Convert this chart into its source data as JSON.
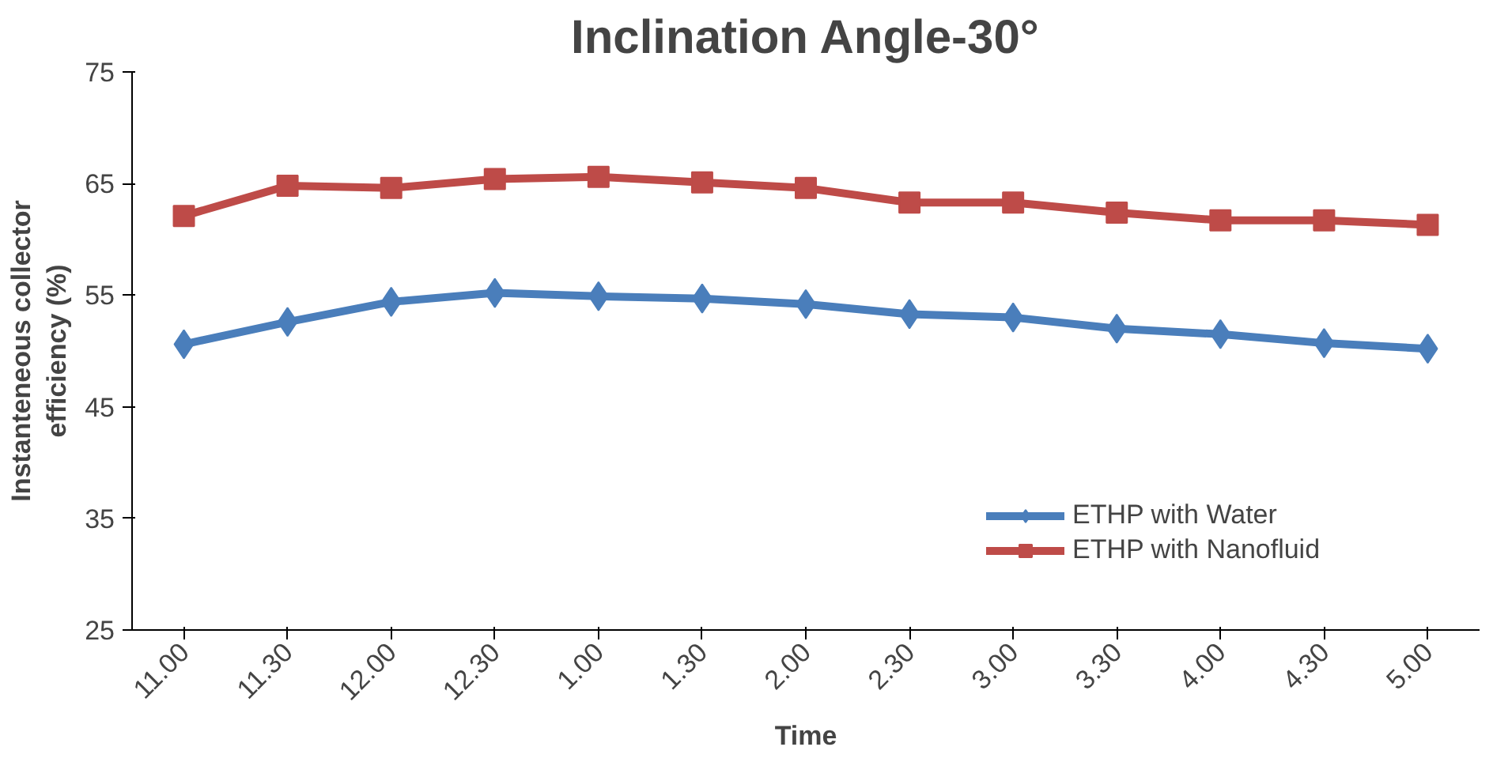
{
  "chart_data": {
    "type": "line",
    "title": "Inclination Angle-30°",
    "xlabel": "Time",
    "ylabel": "Instanteneous collector efficiency (%)",
    "categories": [
      "11.00",
      "11.30",
      "12.00",
      "12.30",
      "1.00",
      "1.30",
      "2.00",
      "2.30",
      "3.00",
      "3.30",
      "4.00",
      "4.30",
      "5.00"
    ],
    "ylim": [
      25,
      75
    ],
    "yticks": [
      25,
      35,
      45,
      55,
      65,
      75
    ],
    "grid": false,
    "legend": "right",
    "line_style": "solid",
    "series": [
      {
        "name": "ETHP with Water",
        "color": "#4a7ebb",
        "marker": "diamond",
        "values": [
          50.6,
          52.6,
          54.4,
          55.2,
          54.9,
          54.7,
          54.2,
          53.3,
          53.0,
          52.0,
          51.5,
          50.7,
          50.2
        ]
      },
      {
        "name": "ETHP with Nanofluid",
        "color": "#be4b48",
        "marker": "square",
        "values": [
          62.1,
          64.8,
          64.6,
          65.4,
          65.6,
          65.1,
          64.6,
          63.3,
          63.3,
          62.4,
          61.7,
          61.7,
          61.3
        ]
      }
    ]
  }
}
